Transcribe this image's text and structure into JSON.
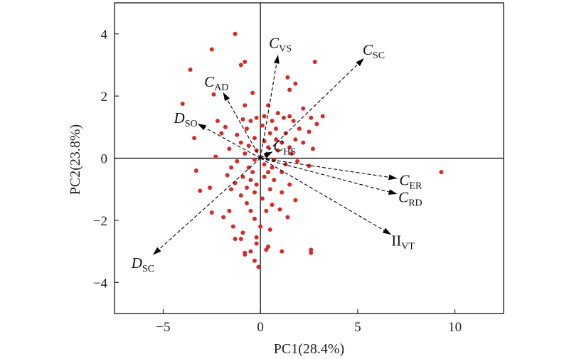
{
  "chart_data": {
    "type": "scatter",
    "title": "",
    "xlabel": "PC1(28.4%)",
    "ylabel": "PC2(23.8%)",
    "xlim": [
      -7.5,
      12.5
    ],
    "ylim": [
      -5,
      5
    ],
    "xticks": [
      -5,
      0,
      5,
      10
    ],
    "yticks": [
      -4,
      -2,
      0,
      2,
      4
    ],
    "x_tick_labels": [
      "−5",
      "0",
      "5",
      "10"
    ],
    "y_tick_labels": [
      "−4",
      "−2",
      "0",
      "2",
      "4"
    ],
    "zero_lines": true,
    "grid": false,
    "point_color": "#d42a2a",
    "scores": [
      {
        "x": -1.3,
        "y": 4.0
      },
      {
        "x": -2.5,
        "y": 3.5
      },
      {
        "x": -0.8,
        "y": 3.1
      },
      {
        "x": -1.0,
        "y": 3.0
      },
      {
        "x": -3.6,
        "y": 2.85
      },
      {
        "x": 2.8,
        "y": 3.1
      },
      {
        "x": 1.4,
        "y": 2.6
      },
      {
        "x": 1.8,
        "y": 2.4
      },
      {
        "x": -2.4,
        "y": 2.05
      },
      {
        "x": -0.4,
        "y": 2.1
      },
      {
        "x": 1.5,
        "y": 2.2
      },
      {
        "x": -4.0,
        "y": 1.75
      },
      {
        "x": -0.8,
        "y": 1.7
      },
      {
        "x": 0.4,
        "y": 1.7
      },
      {
        "x": 2.2,
        "y": 1.6
      },
      {
        "x": -0.2,
        "y": 1.3
      },
      {
        "x": 0.9,
        "y": 1.45
      },
      {
        "x": 1.5,
        "y": 1.35
      },
      {
        "x": 3.2,
        "y": 1.35
      },
      {
        "x": -0.9,
        "y": 1.25
      },
      {
        "x": 0.2,
        "y": 1.35
      },
      {
        "x": 2.6,
        "y": 1.3
      },
      {
        "x": -2.2,
        "y": 1.2
      },
      {
        "x": 1.2,
        "y": 1.3
      },
      {
        "x": -0.5,
        "y": 1.2
      },
      {
        "x": 0.6,
        "y": 1.2
      },
      {
        "x": 1.7,
        "y": 1.2
      },
      {
        "x": 2.9,
        "y": 1.1
      },
      {
        "x": -1.8,
        "y": 1.0
      },
      {
        "x": 0.1,
        "y": 1.05
      },
      {
        "x": -0.7,
        "y": 0.95
      },
      {
        "x": 0.8,
        "y": 0.95
      },
      {
        "x": 2.0,
        "y": 0.95
      },
      {
        "x": -2.0,
        "y": 0.8
      },
      {
        "x": -1.2,
        "y": 0.75
      },
      {
        "x": 0.5,
        "y": 0.8
      },
      {
        "x": 1.3,
        "y": 0.8
      },
      {
        "x": 2.5,
        "y": 0.85
      },
      {
        "x": -3.4,
        "y": 0.65
      },
      {
        "x": -0.3,
        "y": 0.65
      },
      {
        "x": 0.8,
        "y": 0.6
      },
      {
        "x": 1.8,
        "y": 0.6
      },
      {
        "x": -1.0,
        "y": 0.5
      },
      {
        "x": 0.2,
        "y": 0.55
      },
      {
        "x": 1.1,
        "y": 0.5
      },
      {
        "x": 2.2,
        "y": 0.5
      },
      {
        "x": -0.6,
        "y": 0.4
      },
      {
        "x": 0.4,
        "y": 0.35
      },
      {
        "x": 1.5,
        "y": 0.35
      },
      {
        "x": -1.6,
        "y": 0.3
      },
      {
        "x": -0.2,
        "y": 0.25
      },
      {
        "x": 0.9,
        "y": 0.25
      },
      {
        "x": 2.7,
        "y": 0.3
      },
      {
        "x": -0.8,
        "y": 0.15
      },
      {
        "x": 0.3,
        "y": 0.1
      },
      {
        "x": 1.6,
        "y": 0.15
      },
      {
        "x": -2.3,
        "y": 0.05
      },
      {
        "x": -0.3,
        "y": -0.05
      },
      {
        "x": 0.7,
        "y": -0.05
      },
      {
        "x": 1.9,
        "y": -0.1
      },
      {
        "x": -1.2,
        "y": -0.1
      },
      {
        "x": 0.2,
        "y": -0.2
      },
      {
        "x": 1.3,
        "y": -0.2
      },
      {
        "x": 2.5,
        "y": -0.25
      },
      {
        "x": -1.5,
        "y": -0.3
      },
      {
        "x": -0.6,
        "y": -0.3
      },
      {
        "x": 0.6,
        "y": -0.3
      },
      {
        "x": -3.3,
        "y": -0.4
      },
      {
        "x": -0.4,
        "y": -0.45
      },
      {
        "x": 0.4,
        "y": -0.45
      },
      {
        "x": 1.1,
        "y": -0.45
      },
      {
        "x": -1.7,
        "y": -0.55
      },
      {
        "x": -0.9,
        "y": -0.6
      },
      {
        "x": 0.2,
        "y": -0.6
      },
      {
        "x": -0.5,
        "y": -0.7
      },
      {
        "x": 0.7,
        "y": -0.7
      },
      {
        "x": -1.3,
        "y": -0.8
      },
      {
        "x": -0.2,
        "y": -0.85
      },
      {
        "x": 1.5,
        "y": -0.85
      },
      {
        "x": -2.6,
        "y": -0.95
      },
      {
        "x": -0.7,
        "y": -0.95
      },
      {
        "x": 0.5,
        "y": -1.0
      },
      {
        "x": -1.5,
        "y": -1.0
      },
      {
        "x": -0.3,
        "y": -1.1
      },
      {
        "x": 1.1,
        "y": -1.1
      },
      {
        "x": -3.1,
        "y": -1.05
      },
      {
        "x": -1.0,
        "y": -1.2
      },
      {
        "x": 0.1,
        "y": -1.3
      },
      {
        "x": 1.8,
        "y": -1.35
      },
      {
        "x": -0.7,
        "y": -1.45
      },
      {
        "x": 0.6,
        "y": -1.5
      },
      {
        "x": -2.5,
        "y": -1.75
      },
      {
        "x": -1.6,
        "y": -1.7
      },
      {
        "x": -0.5,
        "y": -1.7
      },
      {
        "x": 0.3,
        "y": -1.7
      },
      {
        "x": 1.0,
        "y": -1.65
      },
      {
        "x": -1.9,
        "y": -1.9
      },
      {
        "x": -0.3,
        "y": -1.95
      },
      {
        "x": 1.4,
        "y": -1.9
      },
      {
        "x": -1.4,
        "y": -2.2
      },
      {
        "x": 0.0,
        "y": -2.2
      },
      {
        "x": -0.9,
        "y": -2.4
      },
      {
        "x": 0.5,
        "y": -2.3
      },
      {
        "x": -1.0,
        "y": -2.6
      },
      {
        "x": -0.2,
        "y": -2.55
      },
      {
        "x": -1.3,
        "y": -2.6
      },
      {
        "x": -0.2,
        "y": -2.75
      },
      {
        "x": 0.3,
        "y": -2.95
      },
      {
        "x": 0.4,
        "y": -2.85
      },
      {
        "x": -0.8,
        "y": -3.05
      },
      {
        "x": -0.5,
        "y": -3.0
      },
      {
        "x": -0.8,
        "y": -3.1
      },
      {
        "x": 1.1,
        "y": -3.0
      },
      {
        "x": 2.6,
        "y": -2.95
      },
      {
        "x": 2.6,
        "y": -3.05
      },
      {
        "x": -0.3,
        "y": -3.3
      },
      {
        "x": -0.1,
        "y": -3.5
      },
      {
        "x": 9.3,
        "y": -0.45
      }
    ],
    "loadings": [
      {
        "main": "C",
        "sub": "VS",
        "italic": true,
        "x": 0.9,
        "y": 3.3
      },
      {
        "main": "C",
        "sub": "SC",
        "italic": true,
        "x": 5.3,
        "y": 3.2
      },
      {
        "main": "C",
        "sub": "AD",
        "italic": true,
        "x": -1.9,
        "y": 2.1
      },
      {
        "main": "D",
        "sub": "SO",
        "italic": true,
        "x": -3.2,
        "y": 1.1
      },
      {
        "main": "C",
        "sub": "HS",
        "italic": true,
        "x": 0.6,
        "y": 0.2
      },
      {
        "main": "C",
        "sub": "ER",
        "italic": true,
        "x": 7.0,
        "y": -0.65
      },
      {
        "main": "C",
        "sub": "RD",
        "italic": true,
        "x": 7.0,
        "y": -1.15
      },
      {
        "main": "II",
        "sub": "VT",
        "italic": false,
        "x": 6.7,
        "y": -2.45
      },
      {
        "main": "D",
        "sub": "SC",
        "italic": true,
        "x": -5.5,
        "y": -3.1
      }
    ]
  }
}
